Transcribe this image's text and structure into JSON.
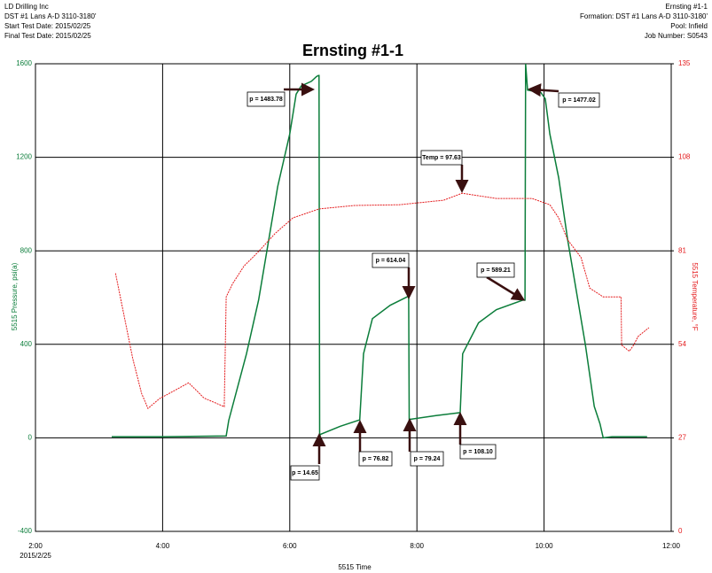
{
  "header": {
    "left": [
      "LD Drilling Inc",
      "DST #1  Lans A-D  3110-3180'",
      "Start Test Date: 2015/02/25",
      "Final Test Date: 2015/02/25"
    ],
    "right": [
      "Ernsting #1-1",
      "Formation: DST #1  Lans A-D  3110-3180'",
      "Pool: Infield",
      "Job Number: S0543"
    ]
  },
  "chart_data": {
    "type": "line",
    "title": "Ernsting #1-1",
    "x_label": "5515 Time",
    "x_date": "2015/2/25",
    "xlim": [
      2,
      12
    ],
    "xticks": [
      {
        "value": 2,
        "label": "2:00"
      },
      {
        "value": 4,
        "label": "4:00"
      },
      {
        "value": 6,
        "label": "6:00"
      },
      {
        "value": 8,
        "label": "8:00"
      },
      {
        "value": 10,
        "label": "10:00"
      },
      {
        "value": 12,
        "label": "12:00"
      }
    ],
    "ylim": [
      -400,
      1600
    ],
    "yticks": [
      -400,
      0,
      400,
      800,
      1200,
      1600
    ],
    "y2lim": [
      0,
      135
    ],
    "y2ticks": [
      0,
      27,
      54,
      81,
      108,
      135
    ],
    "grid": true,
    "series": [
      {
        "name": "5515 Pressure, psi(a)",
        "color": "#0b7d3a",
        "x": [
          3.2,
          4.0,
          5.0,
          5.04,
          5.32,
          5.51,
          5.81,
          6.0,
          6.1,
          6.18,
          6.34,
          6.42,
          6.45,
          6.46,
          6.47,
          6.48,
          6.8,
          7.1,
          7.16,
          7.3,
          7.58,
          7.86,
          7.87,
          7.88,
          7.89,
          8.3,
          8.68,
          8.72,
          8.97,
          9.25,
          9.67,
          9.7,
          9.71,
          9.74,
          9.95,
          10.02,
          10.09,
          10.23,
          10.37,
          10.51,
          10.65,
          10.79,
          10.88,
          10.93,
          11.07,
          11.62
        ],
        "values": [
          5,
          5,
          8,
          75,
          360,
          590,
          1075,
          1300,
          1470,
          1505,
          1525,
          1545,
          1550,
          1550,
          0,
          14.65,
          50,
          76.82,
          360,
          510,
          567,
          605,
          614.04,
          0,
          79.24,
          95,
          108.1,
          360,
          492,
          548,
          589.21,
          589,
          1600,
          1487,
          1477.02,
          1450,
          1300,
          1112,
          850,
          623,
          398,
          135,
          60,
          0,
          5,
          5
        ]
      },
      {
        "name": "5515 Temperature, °F",
        "color": "#e41a1c",
        "axis": "y2",
        "x": [
          3.26,
          3.39,
          3.53,
          3.67,
          3.77,
          3.95,
          4.23,
          4.41,
          4.65,
          4.97,
          5.0,
          5.1,
          5.28,
          5.49,
          5.77,
          6.05,
          6.46,
          7.02,
          7.72,
          8.42,
          8.71,
          9.25,
          9.81,
          10.09,
          10.23,
          10.37,
          10.58,
          10.72,
          10.93,
          11.21,
          11.22,
          11.34,
          11.41,
          11.48,
          11.65
        ],
        "values": [
          74.5,
          62.6,
          49.9,
          39.8,
          35.5,
          38.3,
          41.1,
          42.9,
          38.5,
          36.0,
          67.7,
          71.5,
          76.6,
          80.4,
          86.0,
          90.5,
          93.1,
          94.1,
          94.3,
          95.6,
          97.63,
          96.1,
          96.1,
          94.3,
          90.5,
          84.2,
          79.1,
          70.2,
          67.7,
          67.7,
          53.8,
          52.0,
          53.8,
          56.3,
          58.8
        ]
      }
    ],
    "annotations": [
      "p = 1483.78",
      "p = 1477.02",
      "Temp = 97.63",
      "p = 614.04",
      "p = 589.21",
      "p = 14.65",
      "p = 76.82",
      "p = 79.24",
      "p = 108.10"
    ]
  }
}
